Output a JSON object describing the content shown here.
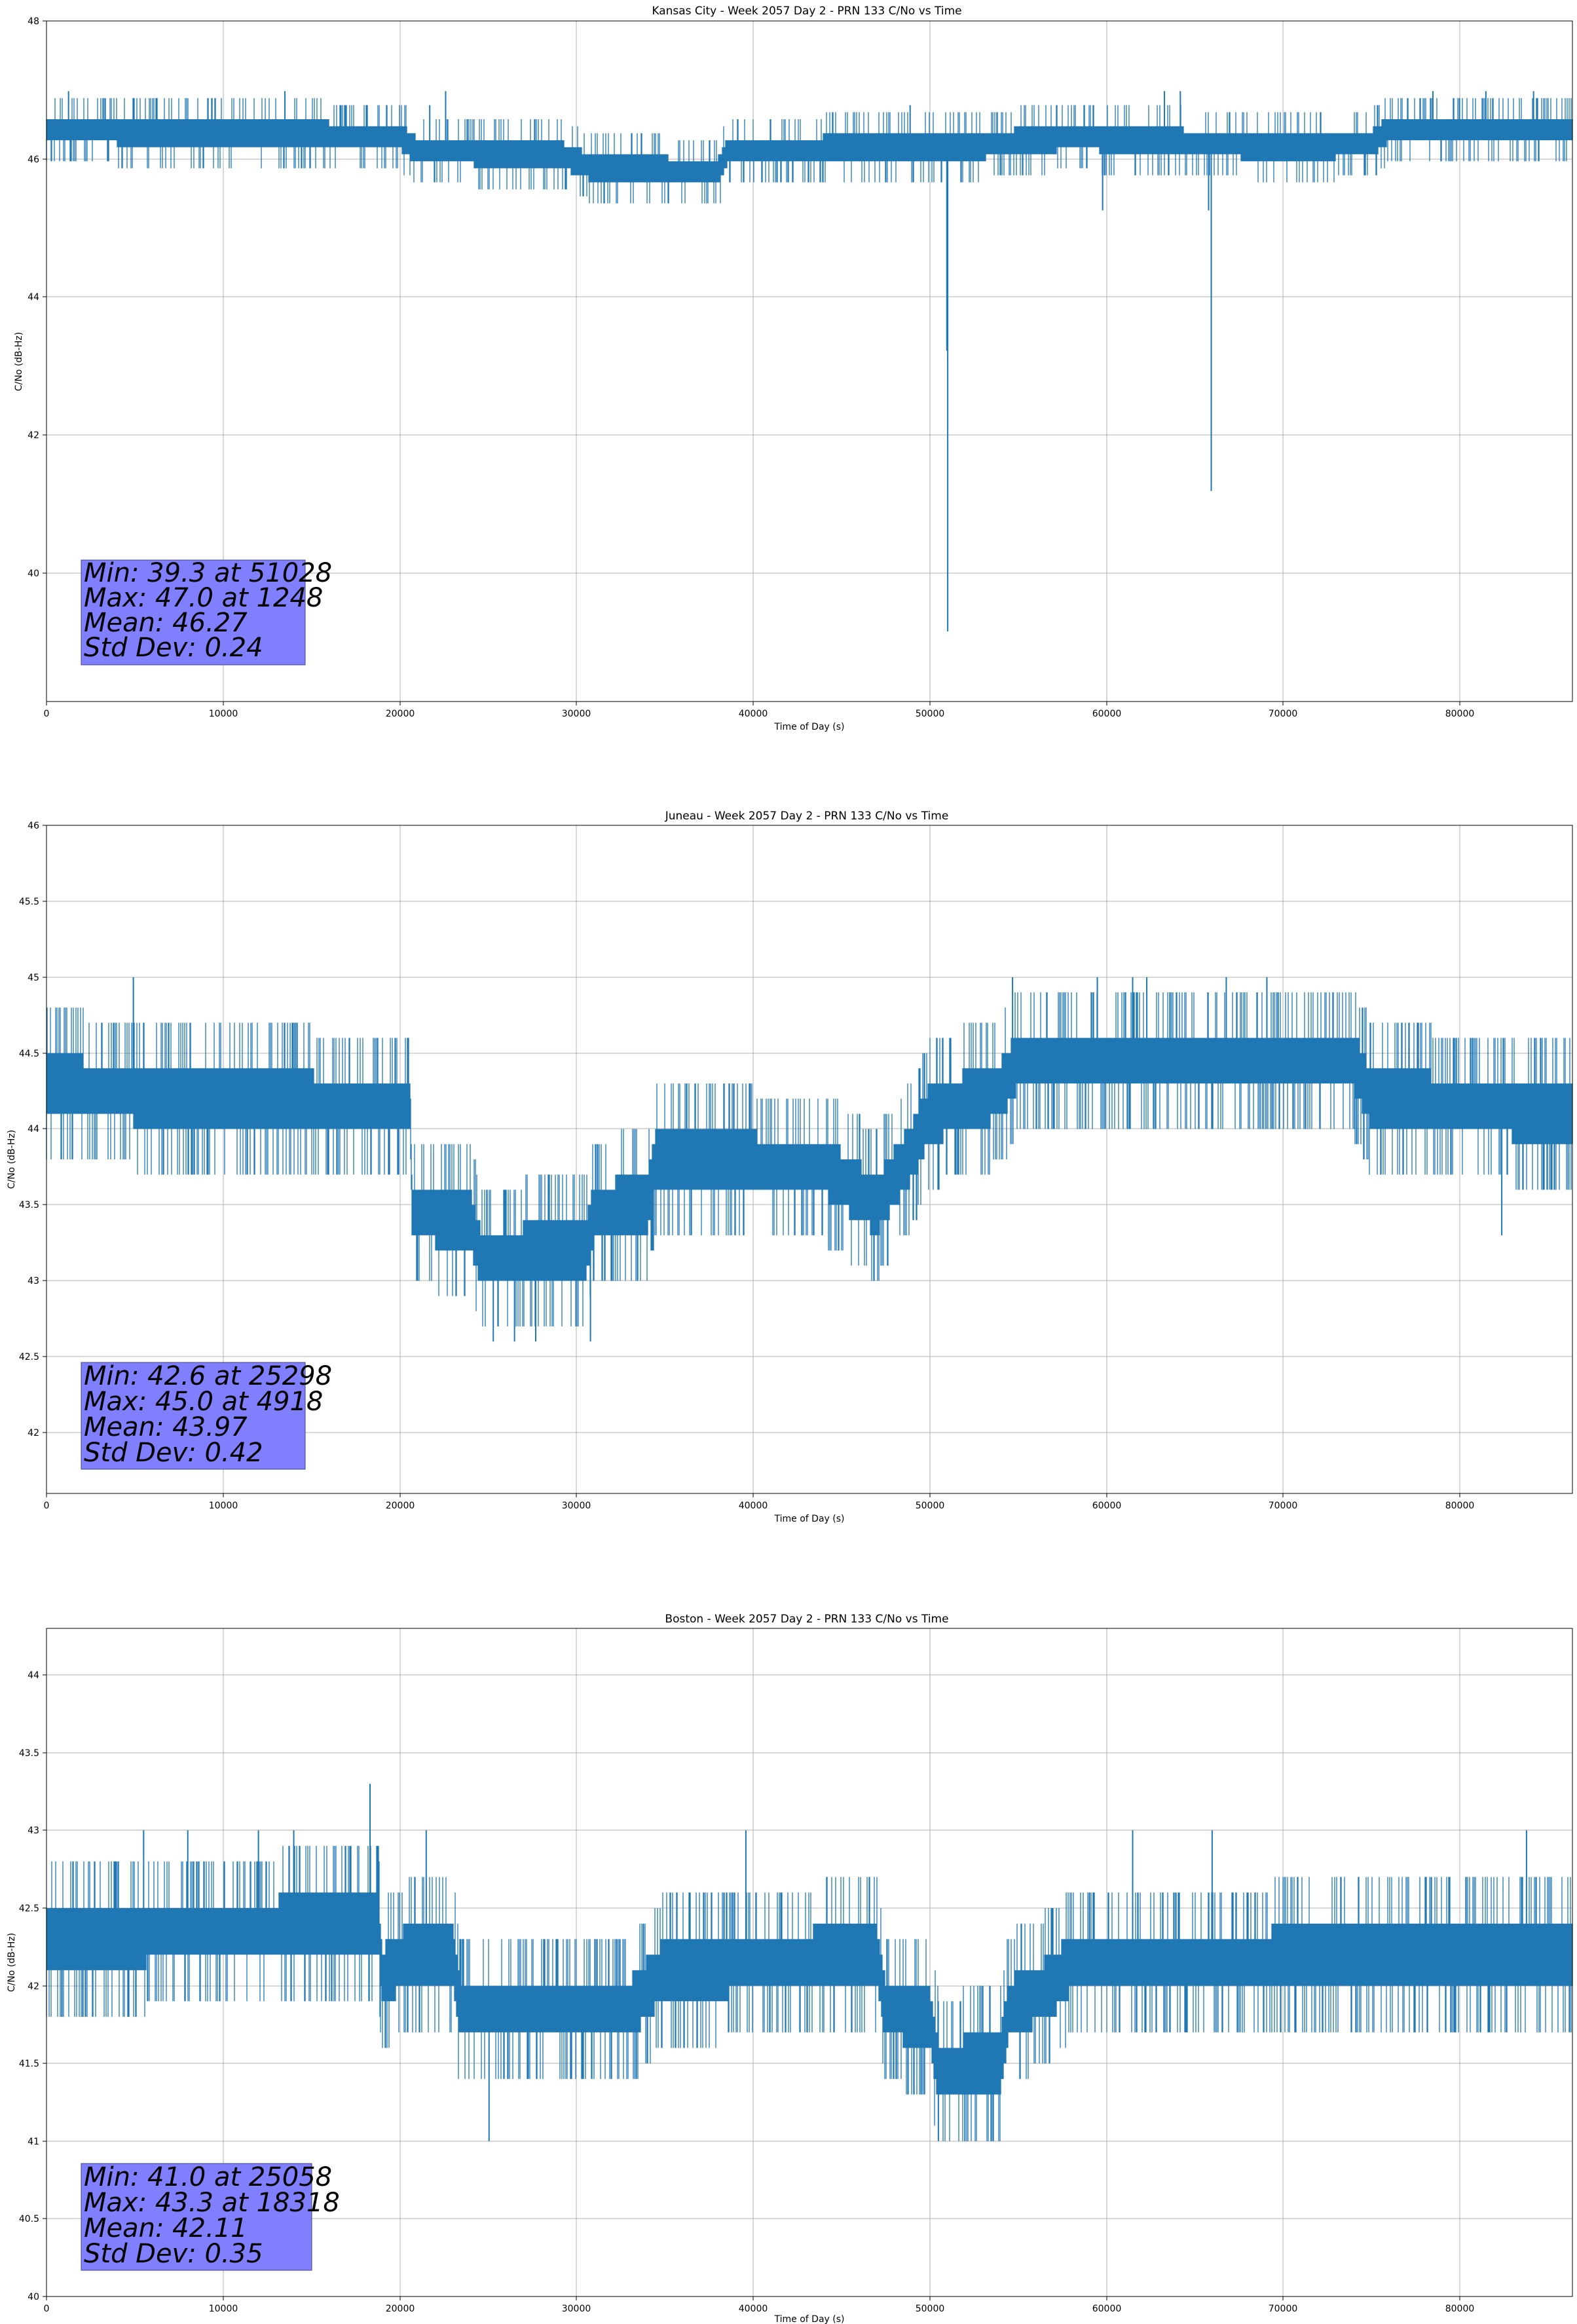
{
  "chart_data": [
    {
      "type": "line",
      "title": "Kansas City - Week 2057 Day 2 - PRN 133 C/No vs Time",
      "xlabel": "Time of Day (s)",
      "ylabel": "C/No (dB-Hz)",
      "xlim": [
        0,
        86400
      ],
      "ylim": [
        38.3,
        48
      ],
      "xticks": [
        0,
        10000,
        20000,
        30000,
        40000,
        50000,
        60000,
        70000,
        80000
      ],
      "yticks": [
        40,
        42,
        44,
        46,
        48
      ],
      "grid": true,
      "color": "#1f77b4",
      "baseline": [
        [
          0,
          46.45
        ],
        [
          20000,
          46.35
        ],
        [
          21000,
          46.15
        ],
        [
          29000,
          46.1
        ],
        [
          31000,
          45.9
        ],
        [
          38000,
          45.85
        ],
        [
          38600,
          46.15
        ],
        [
          52000,
          46.2
        ],
        [
          58000,
          46.35
        ],
        [
          70000,
          46.2
        ],
        [
          75000,
          46.25
        ],
        [
          76000,
          46.45
        ],
        [
          86400,
          46.45
        ]
      ],
      "band_halfwidth": 0.18,
      "noise_spikes": 0.4,
      "events": [
        [
          1248,
          47.0
        ],
        [
          13500,
          47.0
        ],
        [
          21700,
          46.8
        ],
        [
          22600,
          47.0
        ],
        [
          48900,
          46.8
        ],
        [
          50980,
          43.3
        ],
        [
          51028,
          39.3
        ],
        [
          59800,
          45.3
        ],
        [
          63300,
          47.0
        ],
        [
          64200,
          47.0
        ],
        [
          65800,
          45.3
        ],
        [
          65950,
          41.3
        ],
        [
          78500,
          47.0
        ],
        [
          81500,
          47.0
        ],
        [
          84200,
          47.0
        ]
      ],
      "stats": {
        "min": "Min: 39.3 at 51028",
        "max": "Max: 47.0 at 1248",
        "mean": "Mean: 46.27",
        "std": "Std Dev: 0.24"
      }
    },
    {
      "type": "line",
      "title": "Juneau - Week 2057 Day 2 - PRN 133 C/No vs Time",
      "xlabel": "Time of Day (s)",
      "ylabel": "C/No (dB-Hz)",
      "xlim": [
        0,
        86400
      ],
      "ylim": [
        41.6,
        46.0
      ],
      "xticks": [
        0,
        10000,
        20000,
        30000,
        40000,
        50000,
        60000,
        70000,
        80000
      ],
      "yticks": [
        42.0,
        42.5,
        43.0,
        43.5,
        44.0,
        44.5,
        45.0,
        45.5,
        46.0
      ],
      "grid": true,
      "color": "#1f77b4",
      "baseline": [
        [
          0,
          44.3
        ],
        [
          7000,
          44.2
        ],
        [
          20600,
          44.15
        ],
        [
          20700,
          43.45
        ],
        [
          24000,
          43.4
        ],
        [
          24600,
          43.15
        ],
        [
          30500,
          43.2
        ],
        [
          31000,
          43.45
        ],
        [
          34000,
          43.5
        ],
        [
          34500,
          43.8
        ],
        [
          44000,
          43.75
        ],
        [
          47000,
          43.5
        ],
        [
          49000,
          43.85
        ],
        [
          50000,
          44.1
        ],
        [
          54000,
          44.25
        ],
        [
          55000,
          44.45
        ],
        [
          74000,
          44.45
        ],
        [
          75000,
          44.2
        ],
        [
          86400,
          44.1
        ]
      ],
      "band_halfwidth": 0.18,
      "noise_spikes": 0.55,
      "events": [
        [
          4918,
          45.0
        ],
        [
          25298,
          42.6
        ],
        [
          26500,
          42.6
        ],
        [
          27700,
          42.6
        ],
        [
          30800,
          42.6
        ],
        [
          54700,
          45.0
        ],
        [
          59500,
          45.0
        ],
        [
          61500,
          45.0
        ],
        [
          62300,
          45.0
        ],
        [
          66800,
          45.0
        ],
        [
          69100,
          45.0
        ],
        [
          82400,
          43.3
        ]
      ],
      "stats": {
        "min": "Min: 42.6 at 25298",
        "max": "Max: 45.0 at 4918",
        "mean": "Mean: 43.97",
        "std": "Std Dev: 0.42"
      }
    },
    {
      "type": "line",
      "title": "Boston - Week 2057 Day 2 - PRN 133 C/No vs Time",
      "xlabel": "Time of Day (s)",
      "ylabel": "C/No (dB-Hz)",
      "xlim": [
        0,
        86400
      ],
      "ylim": [
        40.0,
        44.3
      ],
      "xticks": [
        0,
        10000,
        20000,
        30000,
        40000,
        50000,
        60000,
        70000,
        80000
      ],
      "yticks": [
        40.0,
        40.5,
        41.0,
        41.5,
        42.0,
        42.5,
        43.0,
        43.5,
        44.0
      ],
      "grid": true,
      "color": "#1f77b4",
      "baseline": [
        [
          0,
          42.3
        ],
        [
          18800,
          42.4
        ],
        [
          19000,
          42.05
        ],
        [
          20500,
          42.2
        ],
        [
          23000,
          42.2
        ],
        [
          23400,
          41.85
        ],
        [
          33000,
          41.85
        ],
        [
          35000,
          42.1
        ],
        [
          47000,
          42.2
        ],
        [
          47500,
          41.85
        ],
        [
          50000,
          41.8
        ],
        [
          50500,
          41.45
        ],
        [
          54000,
          41.5
        ],
        [
          54500,
          41.85
        ],
        [
          57000,
          42.0
        ],
        [
          58000,
          42.15
        ],
        [
          86400,
          42.2
        ]
      ],
      "band_halfwidth": 0.18,
      "noise_spikes": 0.55,
      "events": [
        [
          5500,
          43.0
        ],
        [
          8000,
          43.0
        ],
        [
          12000,
          43.0
        ],
        [
          14000,
          43.0
        ],
        [
          18318,
          43.3
        ],
        [
          21500,
          43.0
        ],
        [
          25058,
          41.0
        ],
        [
          39600,
          43.0
        ],
        [
          50500,
          41.0
        ],
        [
          52000,
          41.0
        ],
        [
          61500,
          43.0
        ],
        [
          66000,
          43.0
        ],
        [
          83800,
          43.0
        ]
      ],
      "stats": {
        "min": "Min: 41.0 at 25058",
        "max": "Max: 43.3 at 18318",
        "mean": "Mean: 42.11",
        "std": "Std Dev: 0.35"
      }
    }
  ]
}
